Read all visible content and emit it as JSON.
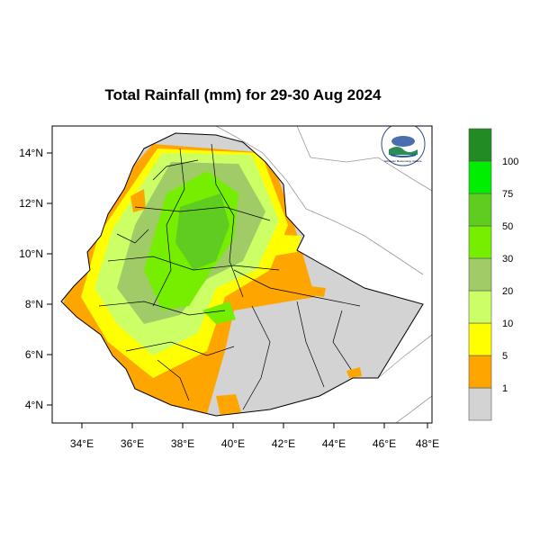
{
  "title": "Total Rainfall (mm) for 29-30 Aug 2024",
  "x_ticks": [
    "34°E",
    "36°E",
    "38°E",
    "40°E",
    "42°E",
    "44°E",
    "46°E",
    "48°E"
  ],
  "y_ticks": [
    "14°N",
    "12°N",
    "10°N",
    "8°N",
    "6°N",
    "4°N"
  ],
  "legend": {
    "labels": [
      "1",
      "5",
      "10",
      "20",
      "30",
      "50",
      "75",
      "100"
    ],
    "colors": [
      "#d3d3d3",
      "#ffa500",
      "#ffff00",
      "#ccff66",
      "#9fcc66",
      "#76ee00",
      "#5fcc20",
      "#00ee00",
      "#238b23"
    ]
  },
  "logo": {
    "text": "Ethiopian Meteorology Institute",
    "icon": "emi-logo-icon"
  },
  "map": {
    "extent": {
      "lon": [
        32.8,
        48.2
      ],
      "lat": [
        3.2,
        15.0
      ]
    },
    "region": "Ethiopia"
  }
}
